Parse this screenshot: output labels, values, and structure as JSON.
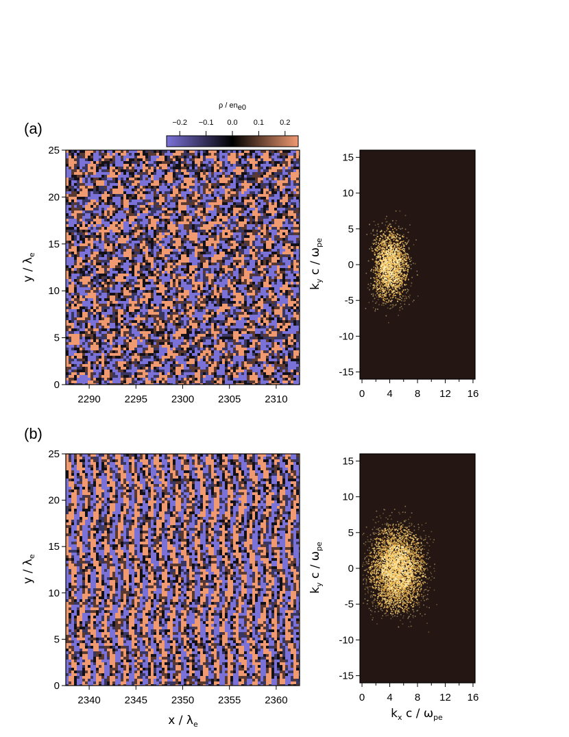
{
  "chart_data": [
    {
      "panel": "(a)",
      "type": "heatmap",
      "xlabel": "",
      "ylabel": {
        "main": "y / λ",
        "sub": "e"
      },
      "xlim": [
        2287.5,
        2312.5
      ],
      "ylim": [
        0,
        25
      ],
      "xticks": [
        2290,
        2295,
        2300,
        2305,
        2310
      ],
      "yticks": [
        0,
        5,
        10,
        15,
        20,
        25
      ],
      "colorbar": {
        "label": {
          "main": "ρ / en",
          "sub": "e0"
        },
        "ticks": [
          -0.2,
          -0.1,
          0.0,
          0.1,
          0.2
        ],
        "tick_labels": [
          "−0.2",
          "−0.1",
          "0.0",
          "0.1",
          "0.2"
        ],
        "range": [
          -0.25,
          0.25
        ],
        "colors": [
          "#7b72d8",
          "#000000",
          "#f09a72"
        ]
      },
      "pattern": "random charge-density fluctuations, roughly isotropic"
    },
    {
      "panel": "(a)",
      "type": "heatmap",
      "xlabel": "",
      "ylabel": {
        "main": "k",
        "sub": "y",
        "rest": " c / ω",
        "sub2": "pe"
      },
      "xlim": [
        -0.3,
        16.3
      ],
      "ylim": [
        -16,
        16
      ],
      "xticks": [
        0,
        4,
        8,
        12,
        16
      ],
      "yticks": [
        -15,
        -10,
        -5,
        0,
        5,
        10,
        15
      ],
      "background": "#231613",
      "spectrum": {
        "center_kx": 4,
        "center_ky": 0,
        "spread_kx": 3.5,
        "spread_ky": 6.5,
        "inner_hole": true
      }
    },
    {
      "panel": "(b)",
      "type": "heatmap",
      "xlabel": {
        "main": "x / λ",
        "sub": "e"
      },
      "ylabel": {
        "main": "y / λ",
        "sub": "e"
      },
      "xlim": [
        2337.5,
        2362.5
      ],
      "ylim": [
        0,
        25
      ],
      "xticks": [
        2340,
        2345,
        2350,
        2355,
        2360
      ],
      "yticks": [
        0,
        5,
        10,
        15,
        20,
        25
      ],
      "pattern": "charge-density fluctuations elongated along y"
    },
    {
      "panel": "(b)",
      "type": "heatmap",
      "xlabel": {
        "main": "k",
        "sub": "x",
        "rest": " c / ω",
        "sub2": "pe"
      },
      "ylabel": {
        "main": "k",
        "sub": "y",
        "rest": " c / ω",
        "sub2": "pe"
      },
      "xlim": [
        -0.3,
        16.3
      ],
      "ylim": [
        -16,
        16
      ],
      "xticks": [
        0,
        4,
        8,
        12,
        16
      ],
      "yticks": [
        -15,
        -10,
        -5,
        0,
        5,
        10,
        15
      ],
      "background": "#231613",
      "spectrum": {
        "center_kx": 5,
        "center_ky": 0,
        "spread_kx": 5,
        "spread_ky": 7.5,
        "inner_hole": false
      }
    }
  ]
}
